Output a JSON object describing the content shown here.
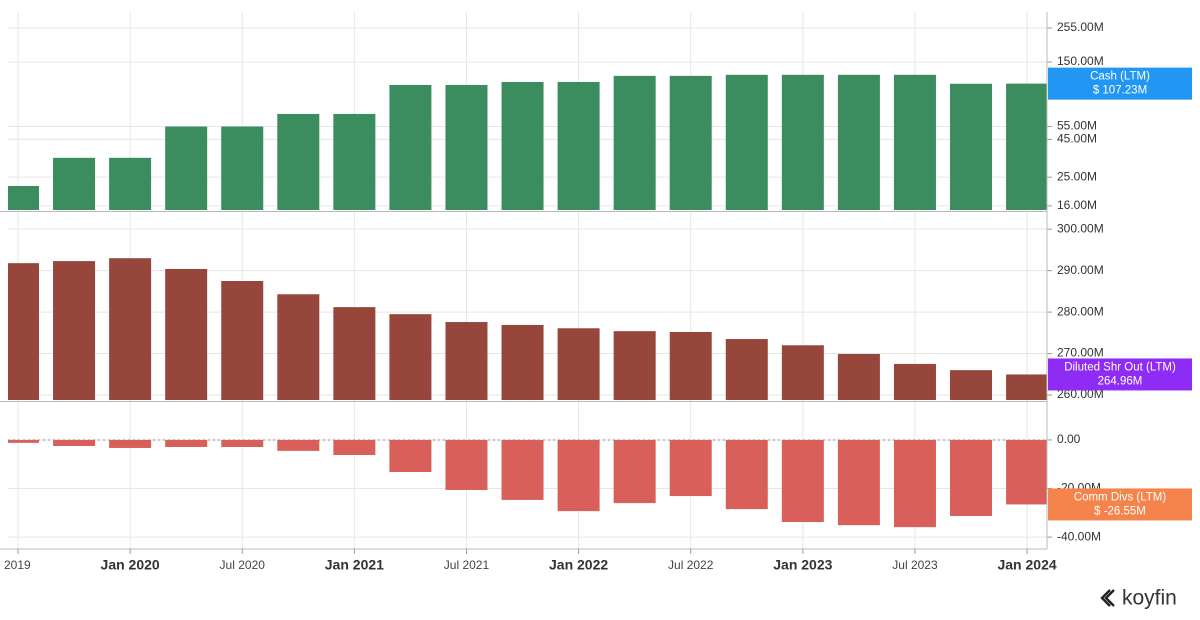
{
  "chart_data": {
    "type": "bar",
    "categories": [
      "2019",
      null,
      "Jan 2020",
      null,
      "Jul 2020",
      null,
      "Jan 2021",
      null,
      "Jul 2021",
      null,
      "Jan 2022",
      null,
      "Jul 2022",
      null,
      "Jan 2023",
      null,
      "Jul 2023",
      null,
      "Jan 2024"
    ],
    "grid": true,
    "panels": [
      {
        "log_scale": true,
        "ylim": [
          15,
          327
        ],
        "yticks": [
          {
            "value": 255,
            "label": "255.00M"
          },
          {
            "value": 150,
            "label": "150.00M"
          },
          {
            "value": 55,
            "label": "55.00M"
          },
          {
            "value": 45,
            "label": "45.00M"
          },
          {
            "value": 25,
            "label": "25.00M"
          },
          {
            "value": 16,
            "label": "16.00M"
          }
        ],
        "series": [
          {
            "name": "Cash (LTM)",
            "color": "#3b8c5e",
            "tag_color": "#2196f3",
            "last_value_label": "$ 107.23M",
            "values": [
              21.8,
              33.8,
              33.8,
              55,
              55,
              66.9,
              66.9,
              105,
              105,
              110,
              110,
              121,
              121,
              123,
              123,
              123,
              123,
              107,
              107.23
            ]
          }
        ]
      },
      {
        "log_scale": false,
        "ylim": [
          258.8,
          303.9
        ],
        "yticks": [
          {
            "value": 300,
            "label": "300.00M"
          },
          {
            "value": 290,
            "label": "290.00M"
          },
          {
            "value": 280,
            "label": "280.00M"
          },
          {
            "value": 270,
            "label": "270.00M"
          },
          {
            "value": 260,
            "label": "260.00M"
          }
        ],
        "series": [
          {
            "name": "Diluted Shr Out (LTM)",
            "color": "#96463b",
            "tag_color": "#8e2cf5",
            "last_value_label": "264.96M",
            "values": [
              291.8,
              292.3,
              293.0,
              290.4,
              287.5,
              284.3,
              281.2,
              279.5,
              277.6,
              276.9,
              276.1,
              275.4,
              275.2,
              273.5,
              272.0,
              269.9,
              267.5,
              266.0,
              264.96
            ]
          }
        ]
      },
      {
        "log_scale": false,
        "ylim": [
          -44.9,
          14.8
        ],
        "yticks": [
          {
            "value": 0,
            "label": "0.00"
          },
          {
            "value": -20,
            "label": "-20.00M"
          },
          {
            "value": -40,
            "label": "-40.00M"
          }
        ],
        "series": [
          {
            "name": "Comm Divs (LTM)",
            "color": "#d9605a",
            "tag_color": "#f5844c",
            "last_value_label": "$ -26.55M",
            "values": [
              -1.2,
              -2.5,
              -3.3,
              -2.9,
              -2.9,
              -4.5,
              -6.2,
              -13.2,
              -20.6,
              -24.7,
              -29.3,
              -26.0,
              -23.1,
              -28.5,
              -33.8,
              -35.1,
              -35.9,
              -31.3,
              -26.55
            ]
          }
        ]
      }
    ]
  },
  "brand": "koyfin"
}
